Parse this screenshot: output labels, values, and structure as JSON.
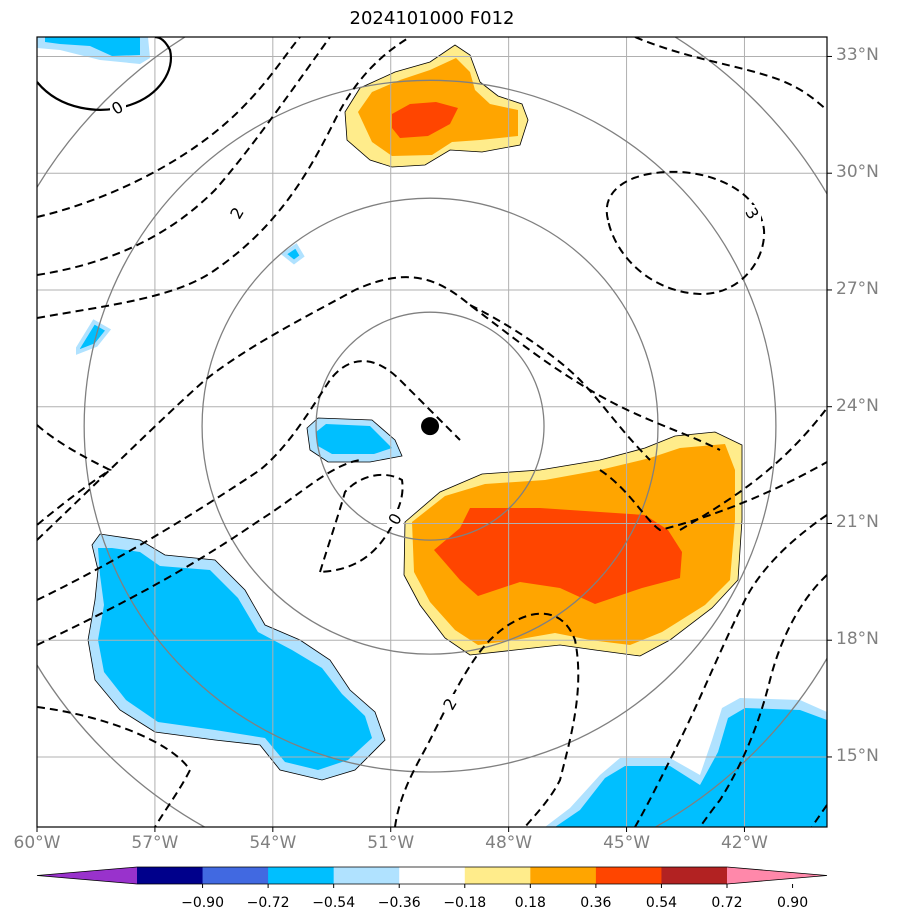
{
  "title": "2024101000 F012",
  "colors": {
    "background": "#ffffff",
    "grid": "#b0b0b0",
    "range_rings": "#808080",
    "contours": "#000000",
    "storm_center": "#000000"
  },
  "chart_data": {
    "type": "contour-map",
    "title": "2024101000 F012",
    "projection": "lat-lon",
    "lon_range": [
      -60,
      -39.9
    ],
    "lat_range": [
      13.2,
      33.5
    ],
    "lon_ticks": [
      "60°W",
      "57°W",
      "54°W",
      "51°W",
      "48°W",
      "45°W",
      "42°W"
    ],
    "lon_tick_values": [
      -60,
      -57,
      -54,
      -51,
      -48,
      -45,
      -42
    ],
    "lat_ticks": [
      "33°N",
      "30°N",
      "27°N",
      "24°N",
      "21°N",
      "18°N",
      "15°N"
    ],
    "lat_tick_values": [
      33,
      30,
      27,
      24,
      21,
      18,
      15
    ],
    "grid": true,
    "storm_center": {
      "lon": -50.0,
      "lat": 23.5
    },
    "range_rings": {
      "center": {
        "lon": -50.0,
        "lat": 23.5
      },
      "radii_deg": [
        2.9,
        5.8,
        8.8,
        11.7
      ]
    },
    "contour_labels": [
      "0",
      "2",
      "3",
      "0",
      "2"
    ],
    "colorbar": {
      "ticks": [
        "−0.90",
        "−0.72",
        "−0.54",
        "−0.36",
        "−0.18",
        "0.18",
        "0.36",
        "0.54",
        "0.72",
        "0.90"
      ],
      "tick_values": [
        -0.9,
        -0.72,
        -0.54,
        -0.36,
        -0.18,
        0.18,
        0.36,
        0.54,
        0.72,
        0.9
      ],
      "colors": [
        "#9932cc",
        "#00008b",
        "#4169e1",
        "#00bfff",
        "#b0e2ff",
        "#ffffff",
        "#ffec8b",
        "#ffa500",
        "#ff4500",
        "#b22222",
        "#ff88aa"
      ],
      "extend": "both"
    },
    "shaded_regions": [
      {
        "name": "north-positive",
        "level": 0.54,
        "peak": 0.72,
        "lon_range": [
          -52.4,
          -47.5
        ],
        "lat_range": [
          30.8,
          33.0
        ]
      },
      {
        "name": "southeast-positive",
        "level": 0.54,
        "peak": 0.72,
        "lon_range": [
          -50.9,
          -42.3
        ],
        "lat_range": [
          18.0,
          23.1
        ]
      },
      {
        "name": "center-negative",
        "level": -0.36,
        "lon_range": [
          -53.6,
          -51.1
        ],
        "lat_range": [
          22.9,
          24.0
        ]
      },
      {
        "name": "southwest-negative",
        "level": -0.36,
        "lon_range": [
          -58.3,
          -51.6
        ],
        "lat_range": [
          14.8,
          21.4
        ]
      },
      {
        "name": "southeast-negative",
        "level": -0.36,
        "lon_range": [
          -46.0,
          -39.9
        ],
        "lat_range": [
          13.2,
          16.9
        ]
      },
      {
        "name": "northwest-negative",
        "level": -0.36,
        "lon_range": [
          -60.0,
          -57.3
        ],
        "lat_range": [
          32.7,
          33.5
        ]
      }
    ]
  }
}
